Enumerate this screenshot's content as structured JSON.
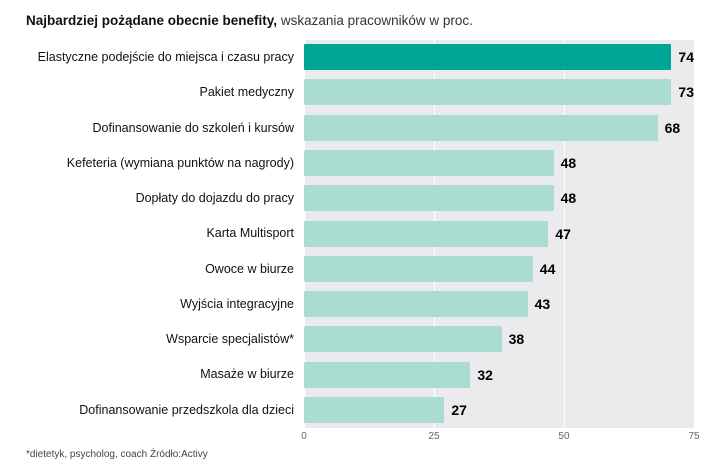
{
  "title": {
    "bold": "Najbardziej pożądane obecnie benefity,",
    "regular": " wskazania pracowników w proc."
  },
  "footnote": "*dietetyk, psycholog, coach Źródło:Activy",
  "colors": {
    "highlight_bar": "#00a695",
    "bar": "#aadcd1",
    "plot_background": "#ebebee",
    "gridline": "#ffffff"
  },
  "chart_data": {
    "type": "bar",
    "orientation": "horizontal",
    "title": "Najbardziej pożądane obecnie benefity, wskazania pracowników w proc.",
    "categories": [
      "Elastyczne podejście do miejsca i czasu pracy",
      "Pakiet medyczny",
      "Dofinansowanie do szkoleń i kursów",
      "Kefeteria (wymiana punktów na nagrody)",
      "Dopłaty do dojazdu do pracy",
      "Karta Multisport",
      "Owoce w biurze",
      "Wyjścia integracyjne",
      "Wsparcie specjalistów*",
      "Masaże w biurze",
      "Dofinansowanie przedszkola dla dzieci"
    ],
    "values": [
      74,
      73,
      68,
      48,
      48,
      47,
      44,
      43,
      38,
      32,
      27
    ],
    "highlight_index": 0,
    "xlabel": "",
    "ylabel": "",
    "xlim": [
      0,
      75
    ],
    "xticks": [
      0,
      25,
      50,
      75
    ],
    "grid": true,
    "legend": false
  }
}
